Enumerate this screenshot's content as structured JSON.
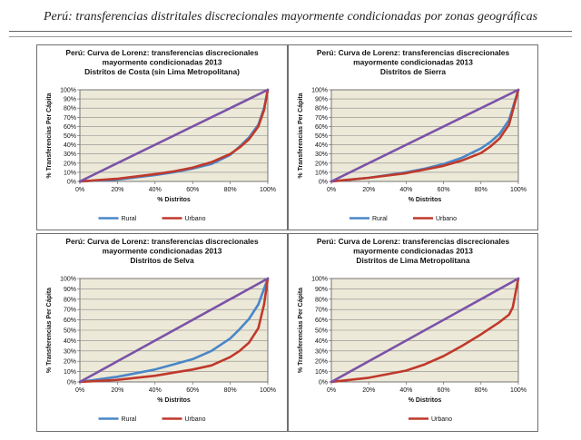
{
  "page": {
    "title": "Perú: transferencias distritales discrecionales mayormente condicionadas por zonas geográficas"
  },
  "colors": {
    "rural": "#4a86c8",
    "urbano": "#c0392b",
    "equality": "#7b52a8",
    "plot_bg": "#ece9d8",
    "grid": "#8a8a8a"
  },
  "chart_data": [
    {
      "type": "line",
      "title_lines": [
        "Perú: Curva de Lorenz: transferencias discrecionales",
        "mayormente condicionadas 2013",
        "Distritos de Costa (sin Lima Metropolitana)"
      ],
      "xlabel": "% Distritos",
      "ylabel": "% Transferencias Per Cápita",
      "xticks": [
        "0%",
        "20%",
        "40%",
        "60%",
        "80%",
        "100%"
      ],
      "yticks": [
        "0%",
        "10%",
        "20%",
        "30%",
        "40%",
        "50%",
        "60%",
        "70%",
        "80%",
        "90%",
        "100%"
      ],
      "xlim": [
        0,
        100
      ],
      "ylim": [
        0,
        100
      ],
      "grid": true,
      "legend": "bottom",
      "series": [
        {
          "name": "Rural",
          "color": "rural",
          "x": [
            0,
            20,
            40,
            50,
            60,
            70,
            80,
            85,
            90,
            95,
            98,
            100
          ],
          "y": [
            0,
            2,
            7,
            10,
            14,
            19,
            29,
            38,
            48,
            62,
            80,
            100
          ]
        },
        {
          "name": "Urbano",
          "color": "urbano",
          "x": [
            0,
            20,
            40,
            50,
            60,
            70,
            80,
            85,
            90,
            95,
            98,
            100
          ],
          "y": [
            0,
            3,
            8,
            11,
            15,
            21,
            30,
            37,
            46,
            60,
            78,
            100
          ]
        }
      ],
      "equality": {
        "x": [
          0,
          100
        ],
        "y": [
          0,
          100
        ]
      }
    },
    {
      "type": "line",
      "title_lines": [
        "Perú: Curva de Lorenz: transferencias discrecionales",
        "mayormente condicionadas 2013",
        "Distritos de Sierra"
      ],
      "xlabel": "% Distritos",
      "ylabel": "% Transferencias Per Cápita",
      "xticks": [
        "0%",
        "20%",
        "40%",
        "60%",
        "80%",
        "100%"
      ],
      "yticks": [
        "0%",
        "10%",
        "20%",
        "30%",
        "40%",
        "50%",
        "60%",
        "70%",
        "80%",
        "90%",
        "100%"
      ],
      "xlim": [
        0,
        100
      ],
      "ylim": [
        0,
        100
      ],
      "grid": true,
      "legend": "bottom",
      "series": [
        {
          "name": "Rural",
          "color": "rural",
          "x": [
            0,
            20,
            40,
            50,
            60,
            70,
            80,
            85,
            90,
            95,
            100
          ],
          "y": [
            0,
            4,
            10,
            14,
            19,
            26,
            36,
            43,
            52,
            67,
            100
          ]
        },
        {
          "name": "Urbano",
          "color": "urbano",
          "x": [
            0,
            20,
            40,
            50,
            60,
            70,
            80,
            85,
            90,
            95,
            100
          ],
          "y": [
            0,
            4,
            9,
            13,
            17,
            23,
            31,
            38,
            47,
            62,
            100
          ]
        }
      ],
      "equality": {
        "x": [
          0,
          100
        ],
        "y": [
          0,
          100
        ]
      }
    },
    {
      "type": "line",
      "title_lines": [
        "Perú: Curva de Lorenz: transferencias discrecionales",
        "mayormente condicionadas 2013",
        "Distritos de Selva"
      ],
      "xlabel": "% Distritos",
      "ylabel": "% Transferencias Per Cápita",
      "xticks": [
        "0%",
        "20%",
        "40%",
        "60%",
        "80%",
        "100%"
      ],
      "yticks": [
        "0%",
        "10%",
        "20%",
        "30%",
        "40%",
        "50%",
        "60%",
        "70%",
        "80%",
        "90%",
        "100%"
      ],
      "xlim": [
        0,
        100
      ],
      "ylim": [
        0,
        100
      ],
      "grid": true,
      "legend": "bottom",
      "series": [
        {
          "name": "Rural",
          "color": "rural",
          "x": [
            0,
            20,
            40,
            50,
            60,
            70,
            80,
            85,
            90,
            95,
            100
          ],
          "y": [
            0,
            5,
            12,
            17,
            22,
            30,
            42,
            51,
            61,
            75,
            100
          ]
        },
        {
          "name": "Urbano",
          "color": "urbano",
          "x": [
            0,
            20,
            40,
            50,
            60,
            70,
            80,
            85,
            90,
            95,
            98,
            100
          ],
          "y": [
            0,
            2,
            6,
            9,
            12,
            16,
            24,
            30,
            38,
            52,
            75,
            100
          ]
        }
      ],
      "equality": {
        "x": [
          0,
          100
        ],
        "y": [
          0,
          100
        ]
      }
    },
    {
      "type": "line",
      "title_lines": [
        "Perú: Curva de Lorenz: transferencias discrecionales",
        "mayormente condicionadas 2013",
        "Distritos de Lima Metropolitana"
      ],
      "xlabel": "% Distritos",
      "ylabel": "% Transferencias Per Cápita",
      "xticks": [
        "0%",
        "20%",
        "40%",
        "60%",
        "80%",
        "100%"
      ],
      "yticks": [
        "0%",
        "10%",
        "20%",
        "30%",
        "40%",
        "50%",
        "60%",
        "70%",
        "80%",
        "90%",
        "100%"
      ],
      "xlim": [
        0,
        100
      ],
      "ylim": [
        0,
        100
      ],
      "grid": true,
      "legend": "bottom",
      "series": [
        {
          "name": "Urbano",
          "color": "urbano",
          "x": [
            0,
            20,
            40,
            50,
            60,
            70,
            80,
            90,
            95,
            97,
            100
          ],
          "y": [
            0,
            4,
            11,
            17,
            25,
            35,
            46,
            58,
            65,
            72,
            100
          ]
        }
      ],
      "equality": {
        "x": [
          0,
          100
        ],
        "y": [
          0,
          100
        ]
      }
    }
  ]
}
